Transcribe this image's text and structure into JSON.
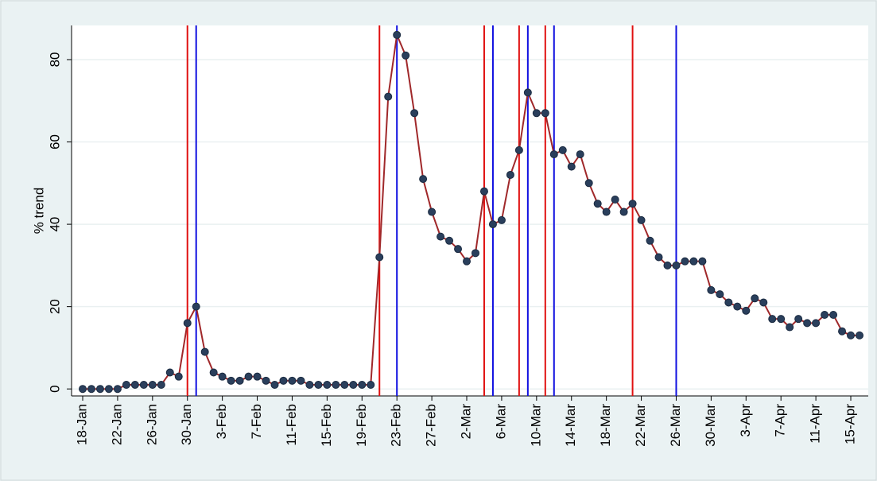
{
  "chart_data": {
    "type": "line",
    "y_label": "% trend",
    "categories": [
      "18-Jan",
      null,
      null,
      null,
      "22-Jan",
      null,
      null,
      null,
      "26-Jan",
      null,
      null,
      null,
      "30-Jan",
      null,
      null,
      null,
      "3-Feb",
      null,
      null,
      null,
      "7-Feb",
      null,
      null,
      null,
      "11-Feb",
      null,
      null,
      null,
      "15-Feb",
      null,
      null,
      null,
      "19-Feb",
      null,
      null,
      null,
      "23-Feb",
      null,
      null,
      null,
      "27-Feb",
      null,
      null,
      null,
      "2-Mar",
      null,
      null,
      null,
      "6-Mar",
      null,
      null,
      null,
      "10-Mar",
      null,
      null,
      null,
      "14-Mar",
      null,
      null,
      null,
      "18-Mar",
      null,
      null,
      null,
      "22-Mar",
      null,
      null,
      null,
      "26-Mar",
      null,
      null,
      null,
      "30-Mar",
      null,
      null,
      null,
      "3-Apr",
      null,
      null,
      null,
      "7-Apr",
      null,
      null,
      null,
      "11-Apr",
      null,
      null,
      null,
      "15-Apr",
      null
    ],
    "series": [
      {
        "color": "#a0282a",
        "marker_color": "#2a3f5c",
        "values": [
          0,
          0,
          0,
          0,
          0,
          1,
          1,
          1,
          1,
          1,
          4,
          3,
          16,
          20,
          9,
          4,
          3,
          2,
          2,
          3,
          3,
          2,
          1,
          2,
          2,
          2,
          1,
          1,
          1,
          1,
          1,
          1,
          1,
          1,
          32,
          71,
          86,
          81,
          67,
          51,
          43,
          37,
          36,
          34,
          31,
          33,
          48,
          40,
          41,
          52,
          58,
          72,
          67,
          67,
          57,
          58,
          54,
          57,
          50,
          45,
          43,
          46,
          43,
          45,
          41,
          36,
          32,
          30,
          30,
          31,
          31,
          31,
          24,
          23,
          21,
          20,
          19,
          22,
          21,
          17,
          17,
          15,
          17,
          16,
          16,
          18,
          18,
          14,
          13,
          13
        ]
      }
    ],
    "vertical_lines": [
      {
        "x": 12,
        "color": "#e01010"
      },
      {
        "x": 13,
        "color": "#1010e0"
      },
      {
        "x": 34,
        "color": "#e01010"
      },
      {
        "x": 36,
        "color": "#1010e0"
      },
      {
        "x": 46,
        "color": "#e01010"
      },
      {
        "x": 47,
        "color": "#1010e0"
      },
      {
        "x": 50,
        "color": "#e01010"
      },
      {
        "x": 51,
        "color": "#1010e0"
      },
      {
        "x": 53,
        "color": "#e01010"
      },
      {
        "x": 54,
        "color": "#1010e0"
      },
      {
        "x": 63,
        "color": "#e01010"
      },
      {
        "x": 68,
        "color": "#1010e0"
      }
    ],
    "ylim": [
      -1.7,
      88.3
    ],
    "yticks": [
      0,
      20,
      40,
      60,
      80
    ],
    "grid": true
  }
}
